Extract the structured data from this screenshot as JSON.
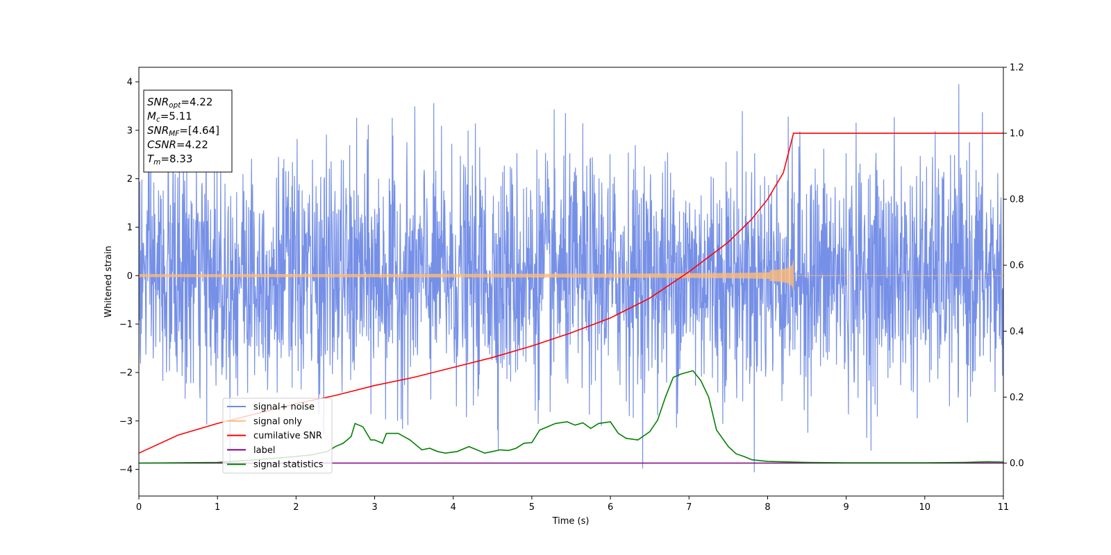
{
  "chart_data": {
    "type": "line",
    "title": "",
    "xlabel": "Time (s)",
    "ylabel": "Whitened strain",
    "xlim": [
      0,
      11
    ],
    "ylim": [
      -4.55,
      4.3
    ],
    "y2lim": [
      -0.1,
      1.2
    ],
    "x_ticks": [
      "0",
      "1",
      "2",
      "3",
      "4",
      "5",
      "6",
      "7",
      "8",
      "9",
      "10",
      "11"
    ],
    "y_ticks": [
      "−4",
      "−3",
      "−2",
      "−1",
      "0",
      "1",
      "2",
      "3",
      "4"
    ],
    "y2_ticks": [
      "0.0",
      "0.2",
      "0.4",
      "0.6",
      "0.8",
      "1.0",
      "1.2"
    ],
    "grid": false,
    "legend_position": "lower-left",
    "colors": {
      "noise": "#6f8ae6",
      "signal": "#ffbb78",
      "cumulative": "#ff0000",
      "label": "#800080",
      "statistics": "#008000"
    },
    "series": [
      {
        "name": "signal+ noise",
        "axis": "left",
        "note": "noisy whitened strain, range about -4.2 to 3.95"
      },
      {
        "name": "signal only",
        "axis": "left",
        "chirp_end": 8.33,
        "peak_amplitude": 0.42
      },
      {
        "name": "cumilative SNR",
        "axis": "right",
        "x": [
          0,
          0.5,
          1,
          1.5,
          2,
          2.5,
          3,
          3.5,
          4,
          4.5,
          5,
          5.5,
          6,
          6.5,
          7,
          7.5,
          7.8,
          8.0,
          8.2,
          8.33,
          8.331,
          11
        ],
        "y": [
          0.03,
          0.085,
          0.12,
          0.15,
          0.18,
          0.205,
          0.235,
          0.26,
          0.29,
          0.32,
          0.355,
          0.395,
          0.44,
          0.5,
          0.58,
          0.67,
          0.74,
          0.8,
          0.88,
          1.0,
          1.0,
          1.0
        ]
      },
      {
        "name": "label",
        "axis": "right",
        "x": [
          0,
          11
        ],
        "y": [
          0,
          0
        ]
      },
      {
        "name": "signal statistics",
        "axis": "right",
        "x": [
          0,
          0.5,
          1,
          1.5,
          2,
          2.2,
          2.4,
          2.5,
          2.6,
          2.7,
          2.75,
          2.85,
          2.95,
          3.0,
          3.1,
          3.15,
          3.3,
          3.45,
          3.6,
          3.7,
          3.8,
          3.9,
          4.05,
          4.2,
          4.3,
          4.4,
          4.5,
          4.6,
          4.7,
          4.8,
          4.9,
          5.0,
          5.1,
          5.2,
          5.3,
          5.45,
          5.55,
          5.65,
          5.75,
          5.85,
          6.0,
          6.1,
          6.2,
          6.35,
          6.5,
          6.6,
          6.7,
          6.8,
          6.9,
          7.05,
          7.15,
          7.25,
          7.35,
          7.5,
          7.6,
          7.7,
          7.8,
          8.0,
          8.5,
          9,
          9.5,
          10,
          10.5,
          10.8,
          11
        ],
        "y": [
          0,
          0.001,
          0.002,
          0.01,
          0.02,
          0.025,
          0.035,
          0.05,
          0.06,
          0.08,
          0.12,
          0.11,
          0.07,
          0.07,
          0.06,
          0.09,
          0.09,
          0.07,
          0.04,
          0.045,
          0.035,
          0.03,
          0.035,
          0.05,
          0.04,
          0.03,
          0.035,
          0.04,
          0.038,
          0.045,
          0.06,
          0.062,
          0.1,
          0.11,
          0.12,
          0.125,
          0.115,
          0.122,
          0.105,
          0.12,
          0.125,
          0.09,
          0.075,
          0.07,
          0.095,
          0.13,
          0.2,
          0.26,
          0.27,
          0.28,
          0.25,
          0.2,
          0.1,
          0.05,
          0.028,
          0.02,
          0.01,
          0.005,
          0.002,
          0.001,
          0.001,
          0.001,
          0.002,
          0.004,
          0.003
        ]
      }
    ]
  },
  "annotation": {
    "lines": [
      {
        "main": "SNR",
        "sub": "opt",
        "value": "=4.22"
      },
      {
        "main": "M",
        "sub": "c",
        "value": "=5.11"
      },
      {
        "main": "SNR",
        "sub": "MF",
        "value": "=[4.64]"
      },
      {
        "main": "CSNR",
        "sub": "",
        "value": "=4.22"
      },
      {
        "main": "T",
        "sub": "m",
        "value": "=8.33"
      }
    ]
  }
}
